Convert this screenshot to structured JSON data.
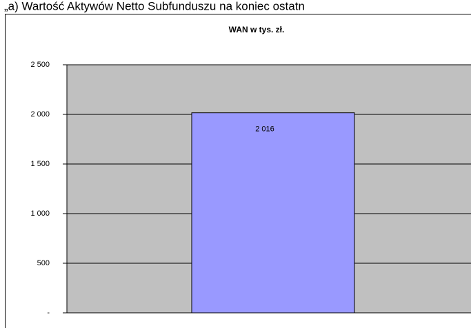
{
  "page_heading": "„a) Wartość Aktywów Netto Subfunduszu na koniec ostatn",
  "chart_data": {
    "type": "bar",
    "title": "WAN w tys. zł.",
    "values": [
      2016
    ],
    "value_labels": [
      "2 016"
    ],
    "color": "#9999ff",
    "ylim": [
      0,
      2500
    ],
    "yticks": [
      {
        "value": 0,
        "label": "-"
      },
      500,
      {
        "value": 1000,
        "label": "1 000"
      },
      {
        "value": 1500,
        "label": "1 500"
      },
      {
        "value": 2000,
        "label": "2 000"
      },
      {
        "value": 2500,
        "label": "2 500"
      }
    ],
    "grid": true
  }
}
